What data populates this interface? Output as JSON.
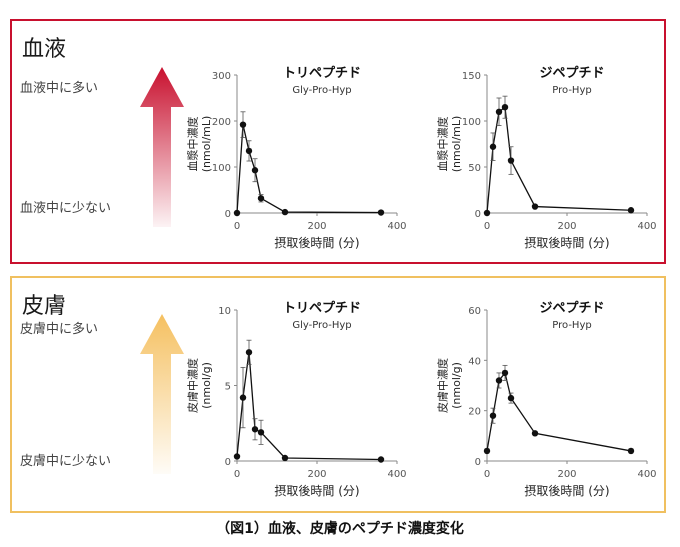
{
  "caption": "（図1）血液、皮膚のペプチド濃度変化",
  "sections": [
    {
      "title": "血液",
      "high_label": "血液中に多い",
      "low_label": "血液中に少ない",
      "arrow_color": "#c8102e",
      "border_color": "#c8102e"
    },
    {
      "title": "皮膚",
      "high_label": "皮膚中に多い",
      "low_label": "皮膚中に少ない",
      "arrow_color": "#f5c060",
      "border_color": "#f0c060"
    }
  ],
  "chart_data": [
    {
      "type": "line",
      "title": "トリペプチド",
      "subtitle": "Gly-Pro-Hyp",
      "xlabel": "摂取後時間 (分)",
      "ylabel": "血漿中濃度\n(nmol/mL)",
      "xlim": [
        0,
        400
      ],
      "ylim": [
        0,
        300
      ],
      "xticks": [
        0,
        200,
        400
      ],
      "yticks": [
        0,
        100,
        200,
        300
      ],
      "x": [
        0,
        15,
        30,
        45,
        60,
        120,
        360
      ],
      "y": [
        0,
        192,
        135,
        93,
        32,
        2,
        1
      ],
      "err": [
        0,
        28,
        22,
        25,
        8,
        0,
        0
      ]
    },
    {
      "type": "line",
      "title": "ジペプチド",
      "subtitle": "Pro-Hyp",
      "xlabel": "摂取後時間 (分)",
      "ylabel": "血漿中濃度\n(nmol/mL)",
      "xlim": [
        0,
        400
      ],
      "ylim": [
        0,
        150
      ],
      "xticks": [
        0,
        200,
        400
      ],
      "yticks": [
        0,
        50,
        100,
        150
      ],
      "x": [
        0,
        15,
        30,
        45,
        60,
        120,
        360
      ],
      "y": [
        0,
        72,
        110,
        115,
        57,
        7,
        3
      ],
      "err": [
        0,
        15,
        15,
        12,
        15,
        0,
        0
      ]
    },
    {
      "type": "line",
      "title": "トリペプチド",
      "subtitle": "Gly-Pro-Hyp",
      "xlabel": "摂取後時間 (分)",
      "ylabel": "皮膚中濃度\n(nmol/g)",
      "xlim": [
        0,
        400
      ],
      "ylim": [
        0,
        10
      ],
      "xticks": [
        0,
        200,
        400
      ],
      "yticks": [
        0,
        5,
        10
      ],
      "x": [
        0,
        15,
        30,
        45,
        60,
        120,
        360
      ],
      "y": [
        0.3,
        4.2,
        7.2,
        2.1,
        1.9,
        0.2,
        0.1
      ],
      "err": [
        0,
        2.0,
        0.8,
        0.7,
        0.8,
        0,
        0
      ]
    },
    {
      "type": "line",
      "title": "ジペプチド",
      "subtitle": "Pro-Hyp",
      "xlabel": "摂取後時間 (分)",
      "ylabel": "皮膚中濃度\n(nmol/g)",
      "xlim": [
        0,
        400
      ],
      "ylim": [
        0,
        60
      ],
      "xticks": [
        0,
        200,
        400
      ],
      "yticks": [
        0,
        20,
        40,
        60
      ],
      "x": [
        0,
        15,
        30,
        45,
        60,
        120,
        360
      ],
      "y": [
        4,
        18,
        32,
        35,
        25,
        11,
        4
      ],
      "err": [
        0,
        3,
        3,
        3,
        2,
        0,
        0
      ]
    }
  ]
}
